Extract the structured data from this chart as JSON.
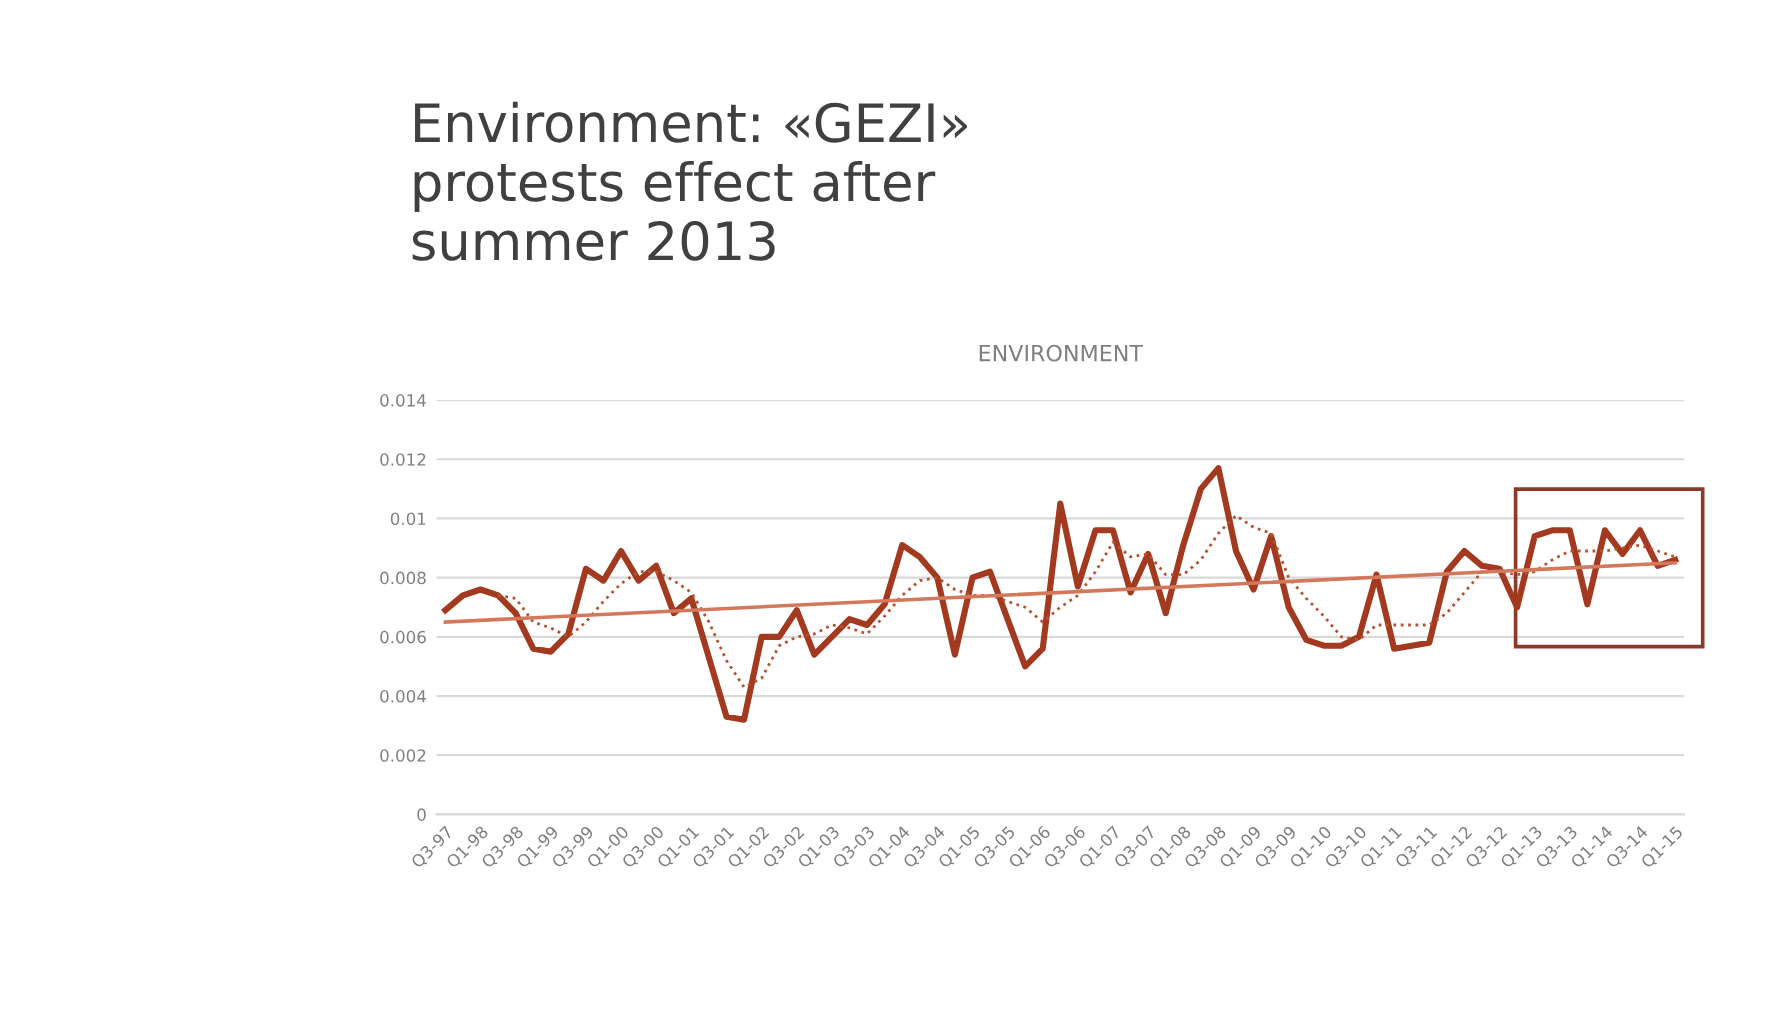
{
  "chart_data": {
    "type": "line",
    "title": "Environment: «GEZI» protests effect after summer 2013",
    "subtitle": "ENVIRONMENT",
    "categories": [
      "Q3-97",
      null,
      "Q1-98",
      null,
      "Q3-98",
      null,
      "Q1-99",
      null,
      "Q3-99",
      null,
      "Q1-00",
      null,
      "Q3-00",
      null,
      "Q1-01",
      null,
      "Q3-01",
      null,
      "Q1-02",
      null,
      "Q3-02",
      null,
      "Q1-03",
      null,
      "Q3-03",
      null,
      "Q1-04",
      null,
      "Q3-04",
      null,
      "Q1-05",
      null,
      "Q3-05",
      null,
      "Q1-06",
      null,
      "Q3-06",
      null,
      "Q1-07",
      null,
      "Q3-07",
      null,
      "Q1-08",
      null,
      "Q3-08",
      null,
      "Q1-09",
      null,
      "Q3-09",
      null,
      "Q1-10",
      null,
      "Q3-10",
      null,
      "Q1-11",
      null,
      "Q3-11",
      null,
      "Q1-12",
      null,
      "Q3-12",
      null,
      "Q1-13",
      null,
      "Q3-13",
      null,
      "Q1-14",
      null,
      "Q3-14",
      null,
      "Q1-15"
    ],
    "series": [
      {
        "color": "#a33a20",
        "line_style": "solid",
        "values": [
          0.0069,
          0.0074,
          0.0076,
          0.0074,
          0.0068,
          0.0056,
          0.0055,
          0.0061,
          0.0083,
          0.0079,
          0.0089,
          0.0079,
          0.0084,
          0.0068,
          0.0073,
          0.0053,
          0.0033,
          0.0032,
          0.006,
          0.006,
          0.0069,
          0.0054,
          0.006,
          0.0066,
          0.0064,
          0.0071,
          0.0091,
          0.0087,
          0.008,
          0.0054,
          0.008,
          0.0082,
          0.0066,
          0.005,
          0.0056,
          0.0105,
          0.0077,
          0.0096,
          0.0096,
          0.0075,
          0.0088,
          0.0068,
          0.0091,
          0.011,
          0.0117,
          0.0089,
          0.0076,
          0.0094,
          0.007,
          0.0059,
          0.0057,
          0.0057,
          0.006,
          0.0081,
          0.0056,
          0.0057,
          0.0058,
          0.0082,
          0.0089,
          0.0084,
          0.0083,
          0.007,
          0.0094,
          0.0096,
          0.0096,
          0.0071,
          0.0096,
          0.0088,
          0.0096,
          0.0084,
          0.0086
        ]
      },
      {
        "color": "#b5532f",
        "line_style": "dotted",
        "values": [
          null,
          null,
          null,
          0.0074,
          0.0073,
          0.0065,
          0.0063,
          0.006,
          0.0065,
          0.0072,
          0.0078,
          0.0082,
          0.0082,
          0.0079,
          0.0075,
          0.0065,
          0.0052,
          0.0043,
          0.0046,
          0.0057,
          0.006,
          0.0061,
          0.0064,
          0.0063,
          0.0061,
          0.0067,
          0.0074,
          0.0079,
          0.008,
          0.0076,
          0.0074,
          0.0074,
          0.0072,
          0.007,
          0.0065,
          0.007,
          0.0074,
          0.0082,
          0.0092,
          0.0087,
          0.0088,
          0.0081,
          0.0081,
          0.0086,
          0.0095,
          0.0101,
          0.0097,
          0.0095,
          0.008,
          0.0073,
          0.0067,
          0.006,
          0.0059,
          0.0064,
          0.0064,
          0.0064,
          0.0064,
          0.0068,
          0.0075,
          0.0082,
          0.0082,
          0.0081,
          0.0082,
          0.0086,
          0.0089,
          0.0089,
          0.0089,
          0.009,
          0.0091,
          0.0089,
          0.0087
        ]
      },
      {
        "color": "#d4785c",
        "line_style": "solid",
        "x": [
          "Q3-97",
          "Q1-15"
        ],
        "values": [
          0.0065,
          0.0085
        ]
      }
    ],
    "ylim": [
      0,
      0.014
    ],
    "yticks": [
      0,
      0.002,
      0.004,
      0.006,
      0.008,
      0.01,
      0.012,
      0.014
    ],
    "grid": "y",
    "marker": "none"
  }
}
